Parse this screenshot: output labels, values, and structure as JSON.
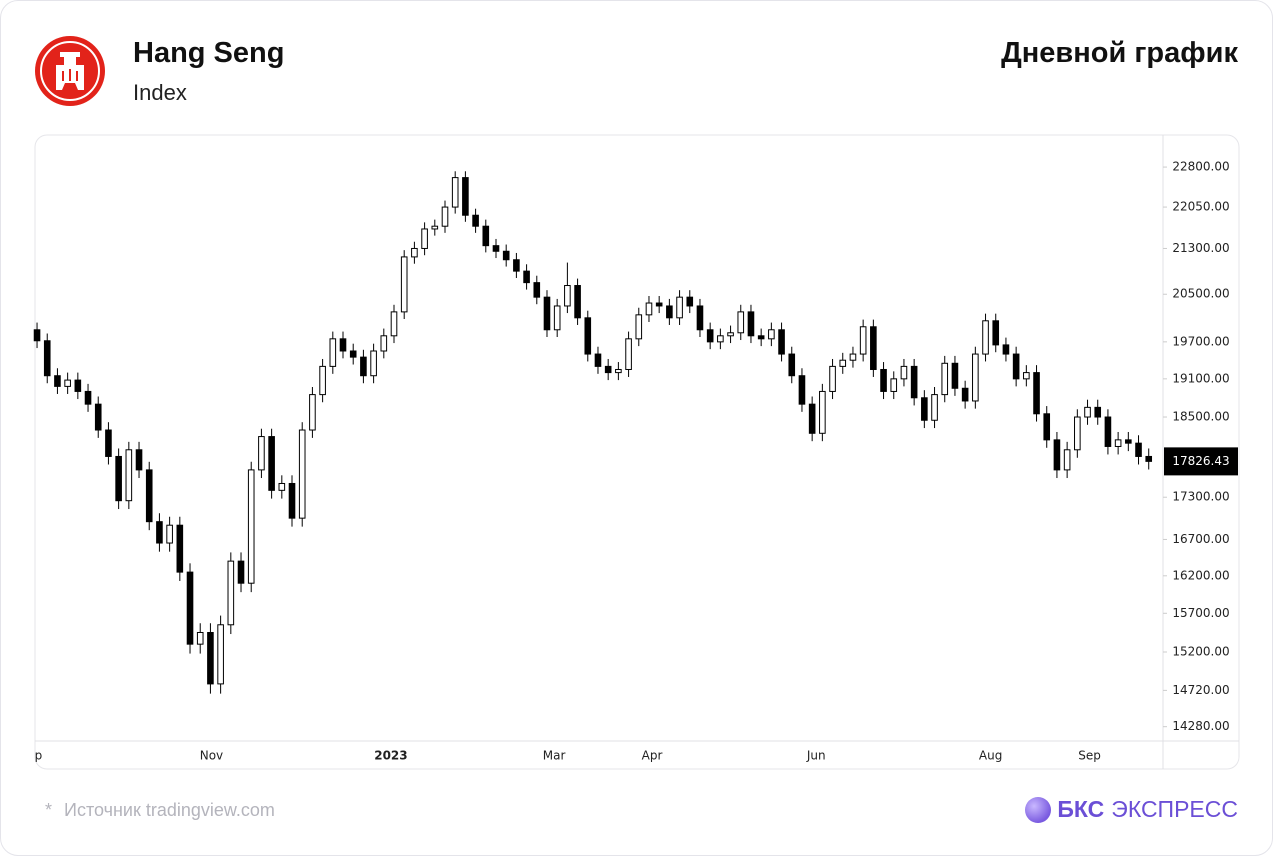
{
  "header": {
    "title": "Hang Seng",
    "subtitle": "Index",
    "chart_label": "Дневной график"
  },
  "chart_data": {
    "type": "candlestick",
    "log_y": true,
    "up_color": "#ffffff",
    "down_color": "#000000",
    "edge_color": "#000000",
    "xlim": [
      -0.2,
      110.4
    ],
    "ylim": [
      14110,
      23400
    ],
    "xticks": [
      {
        "value": -0.6,
        "label": "Sep"
      },
      {
        "value": 17.1,
        "label": "Nov"
      },
      {
        "value": 34.7,
        "label": "2023"
      },
      {
        "value": 50.7,
        "label": "Mar"
      },
      {
        "value": 60.3,
        "label": "Apr"
      },
      {
        "value": 76.4,
        "label": "Jun"
      },
      {
        "value": 93.5,
        "label": "Aug"
      },
      {
        "value": 103.2,
        "label": "Sep"
      }
    ],
    "yticks": [
      {
        "value": 22800,
        "label": "22800.00"
      },
      {
        "value": 22050,
        "label": "22050.00"
      },
      {
        "value": 21300,
        "label": "21300.00"
      },
      {
        "value": 20500,
        "label": "20500.00"
      },
      {
        "value": 19700,
        "label": "19700.00"
      },
      {
        "value": 19100,
        "label": "19100.00"
      },
      {
        "value": 18500,
        "label": "18500.00"
      },
      {
        "value": 17300,
        "label": "17300.00"
      },
      {
        "value": 16700,
        "label": "16700.00"
      },
      {
        "value": 16200,
        "label": "16200.00"
      },
      {
        "value": 15700,
        "label": "15700.00"
      },
      {
        "value": 15200,
        "label": "15200.00"
      },
      {
        "value": 14720,
        "label": "14720.00"
      },
      {
        "value": 14280,
        "label": "14280.00"
      }
    ],
    "open": [
      19900,
      19718,
      19150,
      18980,
      19080,
      18900,
      18700,
      18300,
      17900,
      17250,
      18000,
      17700,
      16950,
      16650,
      16900,
      16250,
      15300,
      15450,
      14800,
      15550,
      16400,
      16100,
      17700,
      18200,
      17400,
      17500,
      17000,
      18300,
      18850,
      19300,
      19750,
      19550,
      19450,
      19150,
      19550,
      19800,
      20200,
      21150,
      21300,
      21650,
      21700,
      22050,
      22600,
      21900,
      21700,
      21350,
      21250,
      21100,
      20900,
      20700,
      20450,
      19900,
      20300,
      20650,
      20100,
      19500,
      19300,
      19200,
      19250,
      19750,
      20150,
      20350,
      20300,
      20100,
      20450,
      20300,
      19900,
      19700,
      19800,
      19850,
      20200,
      19800,
      19750,
      19900,
      19500,
      19150,
      18700,
      18250,
      18900,
      19300,
      19400,
      19500,
      19950,
      19250,
      18900,
      19100,
      19300,
      18800,
      18450,
      18850,
      19350,
      18950,
      18750,
      19500,
      20050,
      19650,
      19500,
      19100,
      19200,
      18550,
      18150,
      17700,
      18000,
      18500,
      18650,
      18500,
      18050,
      18150,
      18100,
      17900
    ],
    "high": [
      20020,
      19838,
      19270,
      19200,
      19200,
      19020,
      18820,
      18420,
      18020,
      18120,
      18120,
      17820,
      17070,
      17020,
      17020,
      16370,
      15570,
      15570,
      15670,
      16520,
      16520,
      17820,
      18320,
      18320,
      17620,
      17620,
      18420,
      18970,
      19420,
      19870,
      19870,
      19670,
      19570,
      19670,
      19920,
      20320,
      21270,
      21420,
      21770,
      21820,
      22170,
      22720,
      22720,
      22020,
      21820,
      21470,
      21370,
      21220,
      21020,
      20820,
      20570,
      20420,
      21050,
      20770,
      20220,
      19620,
      19420,
      19370,
      19870,
      20270,
      20470,
      20470,
      20420,
      20570,
      20570,
      20420,
      20020,
      19920,
      19970,
      20320,
      20320,
      19920,
      20020,
      20020,
      19620,
      19270,
      18820,
      19020,
      19420,
      19520,
      19620,
      20070,
      20070,
      19370,
      19220,
      19420,
      19420,
      18920,
      18970,
      19470,
      19470,
      19070,
      19620,
      20170,
      20170,
      19770,
      19620,
      19320,
      19320,
      18670,
      18270,
      18120,
      18620,
      18770,
      18770,
      18620,
      18270,
      18270,
      18220,
      18020
    ],
    "low": [
      19598,
      19030,
      18860,
      18860,
      18780,
      18580,
      18180,
      17780,
      17130,
      17130,
      17580,
      16830,
      16530,
      16530,
      16130,
      15180,
      15180,
      14680,
      14680,
      15430,
      15980,
      15980,
      17580,
      17280,
      17280,
      16880,
      16880,
      18180,
      18730,
      19180,
      19430,
      19330,
      19030,
      19030,
      19430,
      19680,
      20080,
      21030,
      21180,
      21530,
      21580,
      21930,
      21780,
      21580,
      21230,
      21130,
      20980,
      20780,
      20580,
      20330,
      19780,
      19780,
      20180,
      19980,
      19380,
      19180,
      19080,
      19080,
      19130,
      19630,
      20030,
      20180,
      19980,
      19980,
      20180,
      19780,
      19580,
      19580,
      19680,
      19730,
      19680,
      19630,
      19630,
      19380,
      19030,
      18580,
      18130,
      18130,
      18780,
      19180,
      19280,
      19380,
      19130,
      18780,
      18780,
      18980,
      18680,
      18330,
      18330,
      18730,
      18830,
      18630,
      18630,
      19380,
      19530,
      19380,
      18980,
      18980,
      18430,
      18030,
      17580,
      17580,
      17880,
      18380,
      18380,
      17930,
      17930,
      17980,
      17780,
      17706
    ],
    "close": [
      19718,
      19150,
      18980,
      19080,
      18900,
      18700,
      18300,
      17900,
      17250,
      18000,
      17700,
      16950,
      16650,
      16900,
      16250,
      15300,
      15450,
      14800,
      15550,
      16400,
      16100,
      17700,
      18200,
      17400,
      17500,
      17000,
      18300,
      18850,
      19300,
      19750,
      19550,
      19450,
      19150,
      19550,
      19800,
      20200,
      21150,
      21300,
      21650,
      21700,
      22050,
      22600,
      21900,
      21700,
      21350,
      21250,
      21100,
      20900,
      20700,
      20450,
      19900,
      20300,
      20650,
      20100,
      19500,
      19300,
      19200,
      19250,
      19750,
      20150,
      20350,
      20300,
      20100,
      20450,
      20300,
      19900,
      19700,
      19800,
      19850,
      20200,
      19800,
      19750,
      19900,
      19500,
      19150,
      18700,
      18250,
      18900,
      19300,
      19400,
      19500,
      19950,
      19250,
      18900,
      19100,
      19300,
      18800,
      18450,
      18850,
      19350,
      18950,
      18750,
      19500,
      20050,
      19650,
      19500,
      19100,
      19200,
      18550,
      18150,
      17700,
      18000,
      18500,
      18650,
      18500,
      18050,
      18150,
      18100,
      17900,
      17826.43
    ]
  },
  "footer": {
    "mark": "*",
    "source": "Источник tradingview.com",
    "brand_bold": "БКС",
    "brand_light": "ЭКСПРЕСС"
  }
}
